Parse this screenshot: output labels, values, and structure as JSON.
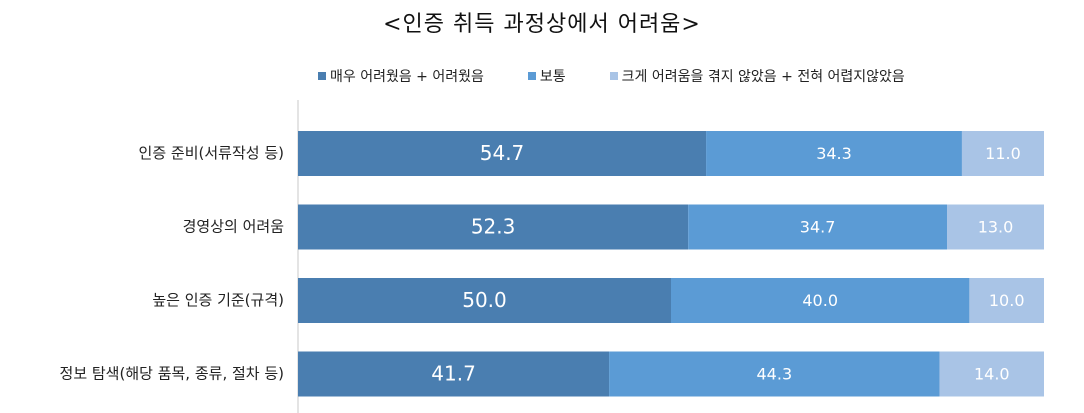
{
  "chart_data": {
    "type": "bar",
    "orientation": "horizontal",
    "stacked": true,
    "title": "<인증 취득 과정상에서 어려움>",
    "categories": [
      "인증 준비(서류작성 등)",
      "경영상의 어려움",
      "높은 인증 기준(규격)",
      "정보 탐색(해당 품목, 종류, 절차 등)"
    ],
    "series": [
      {
        "name": "매우 어려웠음 + 어려웠음",
        "color": "#4a7eb0",
        "values": [
          54.7,
          52.3,
          50.0,
          41.7
        ]
      },
      {
        "name": "보통",
        "color": "#5b9bd5",
        "values": [
          34.3,
          34.7,
          40.0,
          44.3
        ]
      },
      {
        "name": "크게 어려움을 겪지 않았음 + 전혀 어렵지않았음",
        "color": "#a9c4e6",
        "values": [
          11.0,
          13.0,
          10.0,
          14.0
        ]
      }
    ],
    "xlim": [
      0,
      100
    ],
    "legend_position": "top",
    "grid": false
  }
}
